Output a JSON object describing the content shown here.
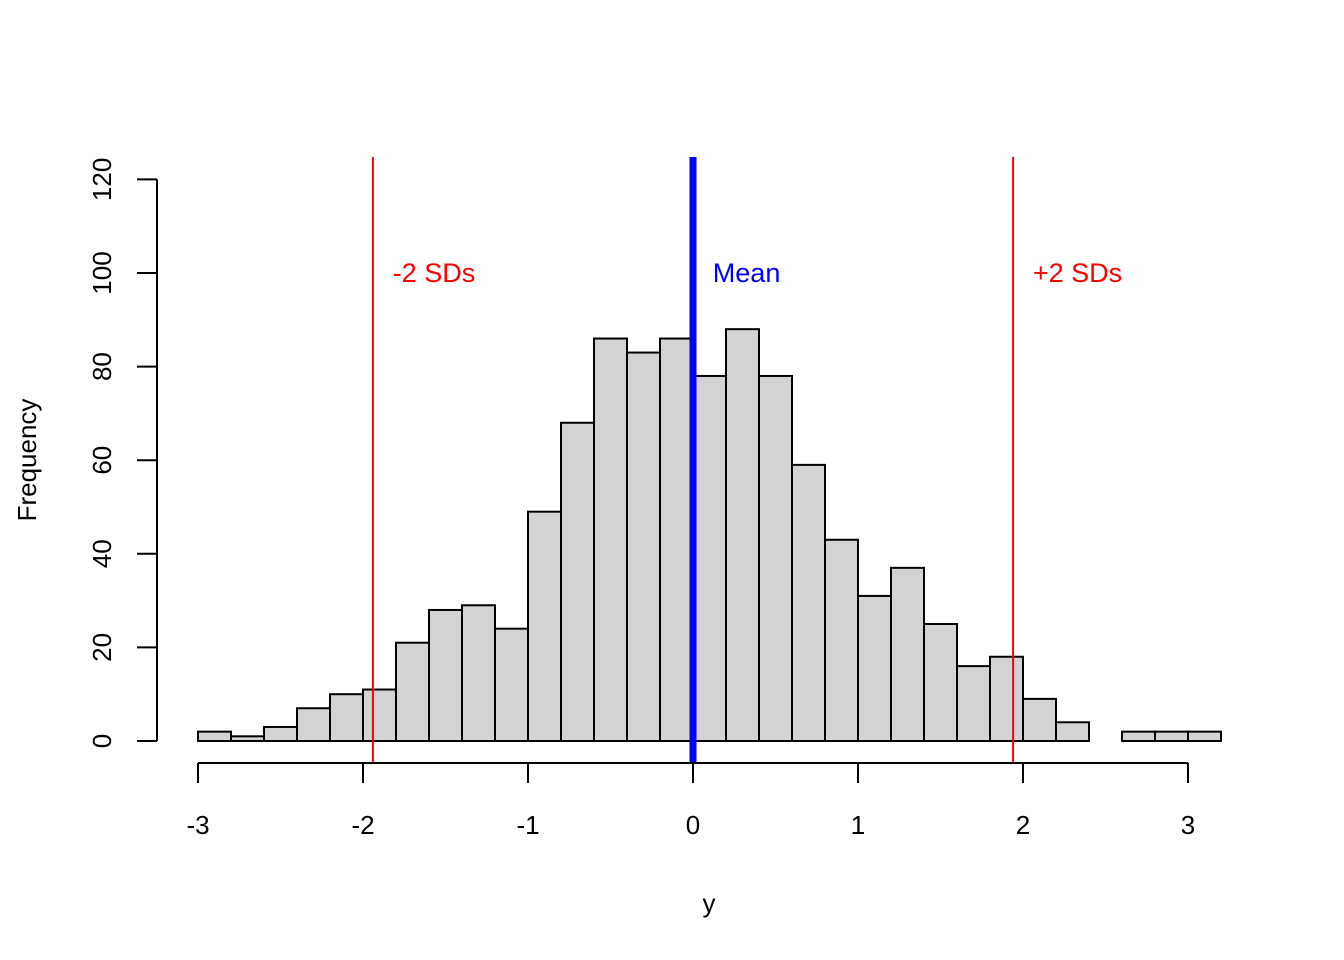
{
  "chart_data": {
    "type": "bar",
    "title": "",
    "xlabel": "y",
    "ylabel": "Frequency",
    "xlim": [
      -3,
      3.2
    ],
    "ylim": [
      0,
      120
    ],
    "x_ticks": [
      -3,
      -2,
      -1,
      0,
      1,
      2,
      3
    ],
    "x_tick_labels": [
      "-3",
      "-2",
      "-1",
      "0",
      "1",
      "2",
      "3"
    ],
    "y_ticks": [
      0,
      20,
      40,
      60,
      80,
      100,
      120
    ],
    "y_tick_labels": [
      "0",
      "20",
      "40",
      "60",
      "80",
      "100",
      "120"
    ],
    "bin_width": 0.2,
    "bin_starts": [
      -3.0,
      -2.8,
      -2.6,
      -2.4,
      -2.2,
      -2.0,
      -1.8,
      -1.6,
      -1.4,
      -1.2,
      -1.0,
      -0.8,
      -0.6,
      -0.4,
      -0.2,
      0.0,
      0.2,
      0.4,
      0.6,
      0.8,
      1.0,
      1.2,
      1.4,
      1.6,
      1.8,
      2.0,
      2.2,
      2.4,
      2.6,
      2.8,
      3.0
    ],
    "values": [
      2,
      1,
      3,
      7,
      10,
      11,
      21,
      28,
      29,
      24,
      49,
      68,
      86,
      83,
      86,
      78,
      88,
      78,
      59,
      43,
      31,
      37,
      25,
      16,
      18,
      9,
      4,
      0,
      2,
      2,
      2
    ],
    "bar_color": "#d3d3d3",
    "grid": false,
    "annotations": [
      {
        "type": "vline",
        "x": -1.94,
        "color": "#ff0000",
        "width": 2,
        "label": "-2 SDs",
        "label_x": -1.82,
        "label_y": 100
      },
      {
        "type": "vline",
        "x": 0.0,
        "color": "#0000ff",
        "width": 7,
        "label": "Mean",
        "label_x": 0.12,
        "label_y": 100
      },
      {
        "type": "vline",
        "x": 1.94,
        "color": "#ff0000",
        "width": 2,
        "label": "+2 SDs",
        "label_x": 2.06,
        "label_y": 100
      }
    ]
  }
}
